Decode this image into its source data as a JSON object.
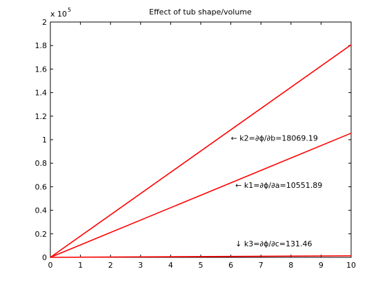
{
  "chart_data": {
    "type": "line",
    "title": "Effect of tub shape/volume",
    "xlabel": "",
    "ylabel": "",
    "xlim": [
      0,
      10
    ],
    "ylim": [
      0,
      200000
    ],
    "y_multiplier": {
      "base": "x 10",
      "exponent": "5"
    },
    "x_ticks": [
      0,
      1,
      2,
      3,
      4,
      5,
      6,
      7,
      8,
      9,
      10
    ],
    "y_ticks": [
      0,
      20000,
      40000,
      60000,
      80000,
      100000,
      120000,
      140000,
      160000,
      180000,
      200000
    ],
    "x_tick_labels": [
      "0",
      "1",
      "2",
      "3",
      "4",
      "5",
      "6",
      "7",
      "8",
      "9",
      "10"
    ],
    "y_tick_labels": [
      "0",
      "0.2",
      "0.4",
      "0.6",
      "0.8",
      "1",
      "1.2",
      "1.4",
      "1.6",
      "1.8",
      "2"
    ],
    "grid": false,
    "line_color": "#ff0000",
    "series": [
      {
        "x": [
          0,
          10
        ],
        "y": [
          0,
          180691.9
        ]
      },
      {
        "x": [
          0,
          10
        ],
        "y": [
          0,
          105518.9
        ]
      },
      {
        "x": [
          0,
          10
        ],
        "y": [
          0,
          1314.6
        ]
      }
    ],
    "annotations": [
      {
        "text": "← k2=∂ϕ/∂b=18069.19",
        "x": 6.0,
        "y": 99000
      },
      {
        "text": "← k1=∂ϕ/∂a=10551.89",
        "x": 6.15,
        "y": 59000
      },
      {
        "text": "↓ k3=∂ϕ/∂c=131.46",
        "x": 6.15,
        "y": 9400
      }
    ]
  }
}
